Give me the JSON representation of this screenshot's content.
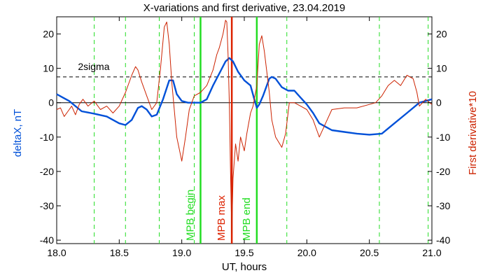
{
  "chart_data": {
    "type": "line",
    "title": "X-variations and first derivative, 23.04.2019",
    "xlabel": "UT, hours",
    "ylabel": "deltaX, nT",
    "y2label": "First derivative*10",
    "xlim": [
      18.0,
      21.0
    ],
    "ylim": [
      -41,
      25
    ],
    "y2lim": [
      -41,
      25
    ],
    "xticks": [
      "18.0",
      "18.5",
      "19.0",
      "19.5",
      "20.0",
      "20.5",
      "21.0"
    ],
    "xtick_values": [
      18.0,
      18.5,
      19.0,
      19.5,
      20.0,
      20.5,
      21.0
    ],
    "yticks": [
      "20",
      "10",
      "0",
      "-10",
      "-20",
      "-30",
      "-40"
    ],
    "ytick_values": [
      20,
      10,
      0,
      -10,
      -20,
      -30,
      -40
    ],
    "y2ticks": [
      "20",
      "10",
      "0",
      "-10",
      "-20",
      "-30",
      "-40"
    ],
    "colors": {
      "deltaX": "#0050d8",
      "derivative": "#cc2200",
      "markers": "#22dd22",
      "mpb_max": "#dd2200"
    },
    "threshold": {
      "label": "2sigma",
      "value": 7.5
    },
    "zero_line": 0,
    "vertical_dashed_x": [
      18.3,
      18.55,
      18.82,
      19.1,
      19.4,
      19.84,
      20.58,
      20.97
    ],
    "markers": [
      {
        "label": "MPB begin",
        "x": 19.15,
        "color": "#22dd22"
      },
      {
        "label": "MPB max",
        "x": 19.4,
        "color": "#dd2200"
      },
      {
        "label": "MPB end",
        "x": 19.6,
        "color": "#22dd22"
      }
    ],
    "series": [
      {
        "name": "deltaX",
        "axis": "left",
        "x": [
          18.0,
          18.05,
          18.1,
          18.2,
          18.3,
          18.4,
          18.5,
          18.55,
          18.6,
          18.65,
          18.68,
          18.72,
          18.76,
          18.8,
          18.85,
          18.9,
          18.93,
          18.96,
          19.0,
          19.05,
          19.1,
          19.15,
          19.2,
          19.25,
          19.3,
          19.35,
          19.38,
          19.41,
          19.45,
          19.5,
          19.55,
          19.58,
          19.6,
          19.62,
          19.65,
          19.7,
          19.72,
          19.75,
          19.8,
          19.85,
          19.9,
          19.95,
          20.0,
          20.05,
          20.1,
          20.15,
          20.2,
          20.3,
          20.4,
          20.5,
          20.6,
          20.7,
          20.8,
          20.9,
          20.95,
          21.0
        ],
        "values": [
          2.5,
          1.5,
          0.5,
          -2.5,
          -3.2,
          -4.0,
          -6.0,
          -6.5,
          -5.0,
          -1.5,
          -1.0,
          -2.0,
          -4.0,
          -3.5,
          1.0,
          6.5,
          6.5,
          2.5,
          0.5,
          0.0,
          0.0,
          0.0,
          1.0,
          5.0,
          8.5,
          12.0,
          13.0,
          12.0,
          9.0,
          6.5,
          5.0,
          1.0,
          -1.5,
          -0.5,
          2.0,
          7.0,
          7.5,
          7.0,
          4.5,
          3.5,
          3.5,
          1.5,
          -0.5,
          -3.0,
          -6.0,
          -7.0,
          -8.0,
          -8.5,
          -9.0,
          -9.3,
          -9.0,
          -6.0,
          -3.0,
          0.0,
          0.5,
          1.0
        ]
      },
      {
        "name": "First derivative*10",
        "axis": "right",
        "x": [
          18.0,
          18.03,
          18.06,
          18.09,
          18.12,
          18.15,
          18.18,
          18.21,
          18.25,
          18.3,
          18.35,
          18.4,
          18.45,
          18.5,
          18.55,
          18.6,
          18.63,
          18.65,
          18.68,
          18.72,
          18.76,
          18.8,
          18.83,
          18.86,
          18.88,
          18.9,
          18.92,
          18.96,
          19.0,
          19.03,
          19.06,
          19.1,
          19.15,
          19.2,
          19.25,
          19.28,
          19.3,
          19.33,
          19.35,
          19.36,
          19.37,
          19.38,
          19.385,
          19.39,
          19.4,
          19.41,
          19.43,
          19.45,
          19.47,
          19.5,
          19.52,
          19.55,
          19.57,
          19.6,
          19.62,
          19.64,
          19.66,
          19.7,
          19.72,
          19.75,
          19.8,
          19.83,
          19.86,
          19.9,
          19.95,
          20.0,
          20.05,
          20.08,
          20.1,
          20.15,
          20.2,
          20.3,
          20.4,
          20.5,
          20.55,
          20.6,
          20.65,
          20.7,
          20.75,
          20.8,
          20.85,
          20.88,
          20.9,
          20.95,
          21.0
        ],
        "values": [
          -2.0,
          -1.5,
          -4.0,
          -2.5,
          -1.0,
          -3.5,
          -0.5,
          1.0,
          -1.0,
          0.5,
          -2.0,
          -1.0,
          -3.0,
          -1.0,
          3.0,
          8.0,
          10.5,
          9.5,
          6.0,
          2.0,
          -2.0,
          0.0,
          10.0,
          22.0,
          23.5,
          17.0,
          6.0,
          -10.0,
          -17.0,
          -10.0,
          -2.0,
          2.0,
          3.0,
          5.0,
          9.5,
          14.0,
          16.0,
          20.0,
          24.0,
          23.5,
          14.0,
          0.0,
          -10.0,
          -20.0,
          -38.0,
          -22.0,
          -12.0,
          -17.0,
          -10.0,
          -14.0,
          -9.0,
          -3.0,
          -1.0,
          5.0,
          17.0,
          19.5,
          15.0,
          3.0,
          -5.0,
          -10.0,
          -13.0,
          -9.0,
          0.0,
          0.0,
          -1.0,
          -2.0,
          -5.0,
          -8.0,
          -10.0,
          -6.0,
          -2.0,
          -1.5,
          -1.5,
          -0.5,
          0.0,
          2.0,
          5.0,
          6.5,
          5.0,
          8.0,
          7.0,
          3.0,
          -1.0,
          1.0,
          -0.5
        ]
      }
    ]
  }
}
